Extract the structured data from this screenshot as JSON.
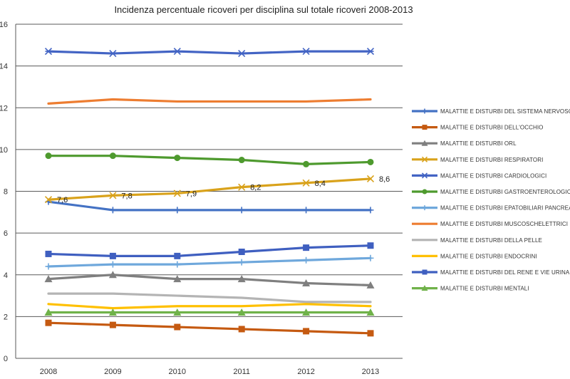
{
  "chart_data": {
    "type": "line",
    "title": "Incidenza percentuale ricoveri per disciplina sul totale ricoveri 2008-2013",
    "xlabel": "",
    "ylabel": "",
    "x": [
      "2008",
      "2009",
      "2010",
      "2011",
      "2012",
      "2013"
    ],
    "ylim": [
      0,
      16
    ],
    "yticks": [
      "0",
      "2",
      "4",
      "6",
      "8",
      "10",
      "12",
      "14",
      "16"
    ],
    "grid": "horizontal",
    "legend_position": "right",
    "series": [
      {
        "name": "MALATTIE E DISTURBI DEL SISTEMA NERVOSO",
        "color": "#4472C4",
        "marker": "plus",
        "values": [
          7.5,
          7.1,
          7.1,
          7.1,
          7.1,
          7.1
        ]
      },
      {
        "name": "MALATTIE E DISTURBI DELL'OCCHIO",
        "color": "#C55A11",
        "marker": "square",
        "values": [
          1.7,
          1.6,
          1.5,
          1.4,
          1.3,
          1.2
        ]
      },
      {
        "name": "MALATTIE E DISTURBI ORL",
        "color": "#7F7F7F",
        "marker": "triangle",
        "values": [
          3.8,
          4.0,
          3.8,
          3.8,
          3.6,
          3.5
        ]
      },
      {
        "name": "MALATTIE E DISTURBI RESPIRATORI",
        "color": "#D9A21B",
        "marker": "x",
        "values": [
          7.6,
          7.8,
          7.9,
          8.2,
          8.4,
          8.6
        ],
        "data_labels": [
          "7,6",
          "7,8",
          "7,9",
          "8,2",
          "8,4",
          "8,6"
        ]
      },
      {
        "name": "MALATTIE E DISTURBI CARDIOLOGICI",
        "color": "#4364C4",
        "marker": "star",
        "values": [
          14.7,
          14.6,
          14.7,
          14.6,
          14.7,
          14.7
        ]
      },
      {
        "name": "MALATTIE E DISTURBI GASTROENTEROLOGICI",
        "color": "#4E9A2E",
        "marker": "circle",
        "values": [
          9.7,
          9.7,
          9.6,
          9.5,
          9.3,
          9.4
        ]
      },
      {
        "name": "MALATTIE E DISTURBI EPATOBILIARI PANCREAS",
        "color": "#6FA8DC",
        "marker": "plus",
        "values": [
          4.4,
          4.5,
          4.5,
          4.6,
          4.7,
          4.8
        ]
      },
      {
        "name": "MALATTIE E DISTURBI MUSCOSCHELETTRICI",
        "color": "#ED7D31",
        "marker": "none",
        "values": [
          12.2,
          12.4,
          12.3,
          12.3,
          12.3,
          12.4
        ]
      },
      {
        "name": "MALATTIE E DISTURBI DELLA PELLE",
        "color": "#B4B4B4",
        "marker": "none",
        "values": [
          3.1,
          3.1,
          3.0,
          2.9,
          2.7,
          2.7
        ]
      },
      {
        "name": "MALATTIE E DISTURBI ENDOCRINI",
        "color": "#FFC000",
        "marker": "none",
        "values": [
          2.6,
          2.4,
          2.5,
          2.5,
          2.6,
          2.5
        ]
      },
      {
        "name": "MALATTIE E DISTURBI DEL RENE E VIE URINARIE",
        "color": "#3F5FC0",
        "marker": "square",
        "values": [
          5.0,
          4.9,
          4.9,
          5.1,
          5.3,
          5.4
        ]
      },
      {
        "name": "MALATTIE E DISTURBI MENTALI",
        "color": "#70B24A",
        "marker": "triangle",
        "values": [
          2.2,
          2.2,
          2.2,
          2.2,
          2.2,
          2.2
        ]
      }
    ]
  }
}
